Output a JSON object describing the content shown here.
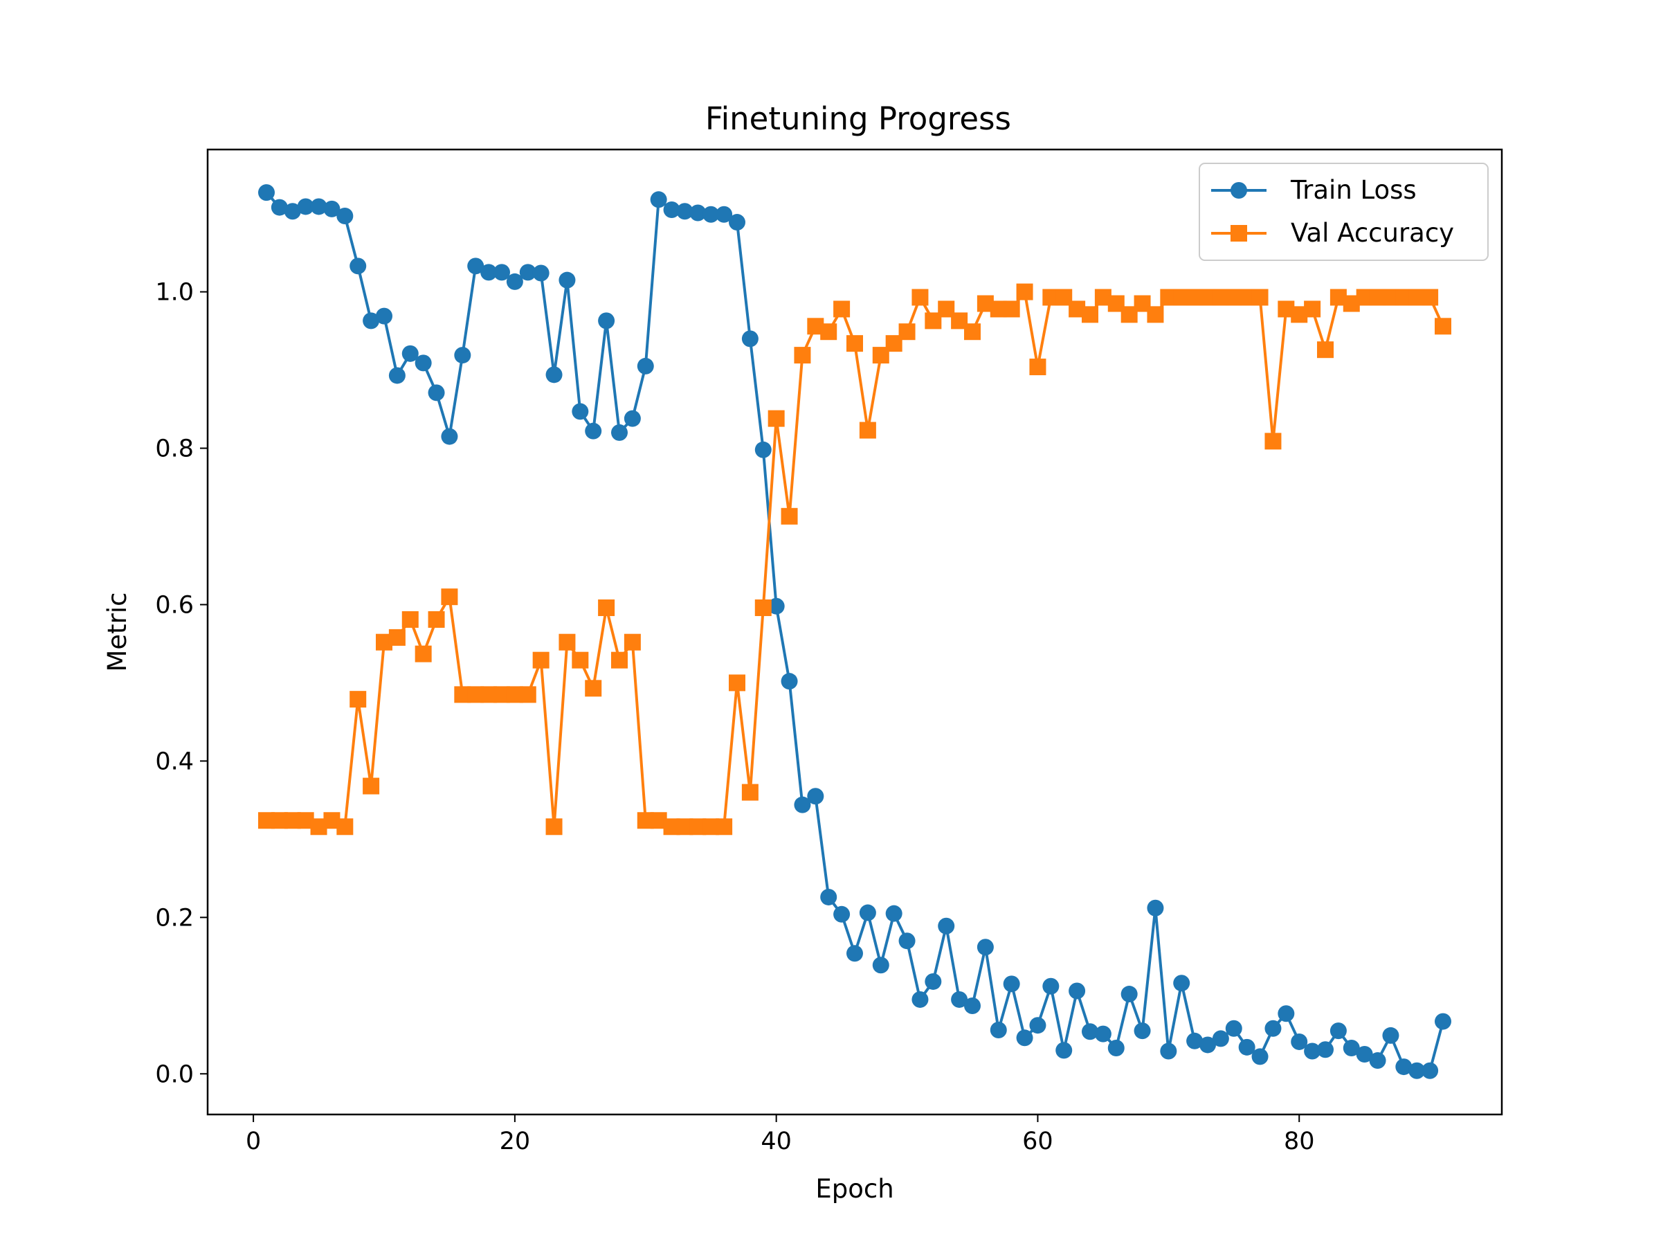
{
  "chart_data": {
    "type": "line",
    "title": "Finetuning Progress",
    "xlabel": "Epoch",
    "ylabel": "Metric",
    "xlim": [
      -3.5,
      95.5
    ],
    "ylim": [
      -0.052,
      1.182
    ],
    "xticks": [
      0,
      20,
      40,
      60,
      80
    ],
    "xtick_labels": [
      "0",
      "20",
      "40",
      "60",
      "80"
    ],
    "yticks": [
      0.0,
      0.2,
      0.4,
      0.6,
      0.8,
      1.0
    ],
    "ytick_labels": [
      "0.0",
      "0.2",
      "0.4",
      "0.6",
      "0.8",
      "1.0"
    ],
    "grid": false,
    "legend_position": "top-right",
    "x": [
      1,
      2,
      3,
      4,
      5,
      6,
      7,
      8,
      9,
      10,
      11,
      12,
      13,
      14,
      15,
      16,
      17,
      18,
      19,
      20,
      21,
      22,
      23,
      24,
      25,
      26,
      27,
      28,
      29,
      30,
      31,
      32,
      33,
      34,
      35,
      36,
      37,
      38,
      39,
      40,
      41,
      42,
      43,
      44,
      45,
      46,
      47,
      48,
      49,
      50,
      51,
      52,
      53,
      54,
      55,
      56,
      57,
      58,
      59,
      60,
      61,
      62,
      63,
      64,
      65,
      66,
      67,
      68,
      69,
      70,
      71,
      72,
      73,
      74,
      75,
      76,
      77,
      78,
      79,
      80,
      81,
      82,
      83,
      84,
      85,
      86,
      87,
      88,
      89,
      90,
      91
    ],
    "series": [
      {
        "name": "Train Loss",
        "color": "#1f77b4",
        "marker": "circle",
        "values": [
          1.127,
          1.108,
          1.103,
          1.109,
          1.109,
          1.106,
          1.097,
          1.033,
          0.963,
          0.969,
          0.893,
          0.921,
          0.909,
          0.871,
          0.815,
          0.919,
          1.033,
          1.025,
          1.025,
          1.013,
          1.025,
          1.024,
          0.894,
          1.015,
          0.847,
          0.822,
          0.963,
          0.82,
          0.838,
          0.905,
          1.118,
          1.105,
          1.103,
          1.101,
          1.099,
          1.099,
          1.089,
          0.94,
          0.798,
          0.598,
          0.502,
          0.344,
          0.355,
          0.226,
          0.204,
          0.154,
          0.206,
          0.139,
          0.205,
          0.17,
          0.095,
          0.118,
          0.189,
          0.095,
          0.087,
          0.162,
          0.056,
          0.115,
          0.046,
          0.062,
          0.112,
          0.03,
          0.106,
          0.054,
          0.051,
          0.033,
          0.102,
          0.055,
          0.212,
          0.029,
          0.116,
          0.042,
          0.037,
          0.045,
          0.058,
          0.034,
          0.022,
          0.058,
          0.077,
          0.041,
          0.029,
          0.031,
          0.055,
          0.033,
          0.025,
          0.017,
          0.049,
          0.009,
          0.004,
          0.004,
          0.067
        ]
      },
      {
        "name": "Val Accuracy",
        "color": "#ff7f0e",
        "marker": "square",
        "values": [
          0.324,
          0.324,
          0.324,
          0.324,
          0.316,
          0.324,
          0.316,
          0.479,
          0.368,
          0.552,
          0.558,
          0.581,
          0.537,
          0.581,
          0.61,
          0.485,
          0.485,
          0.485,
          0.485,
          0.485,
          0.485,
          0.529,
          0.316,
          0.552,
          0.529,
          0.493,
          0.596,
          0.529,
          0.552,
          0.324,
          0.324,
          0.316,
          0.316,
          0.316,
          0.316,
          0.316,
          0.5,
          0.36,
          0.596,
          0.838,
          0.713,
          0.919,
          0.956,
          0.949,
          0.978,
          0.934,
          0.823,
          0.919,
          0.934,
          0.949,
          0.993,
          0.963,
          0.978,
          0.963,
          0.949,
          0.985,
          0.978,
          0.978,
          1.0,
          0.904,
          0.993,
          0.993,
          0.978,
          0.971,
          0.993,
          0.985,
          0.971,
          0.985,
          0.971,
          0.993,
          0.993,
          0.993,
          0.993,
          0.993,
          0.993,
          0.993,
          0.993,
          0.809,
          0.978,
          0.971,
          0.978,
          0.926,
          0.993,
          0.985,
          0.993,
          0.993,
          0.993,
          0.993,
          0.993,
          0.993,
          0.956
        ]
      }
    ]
  }
}
